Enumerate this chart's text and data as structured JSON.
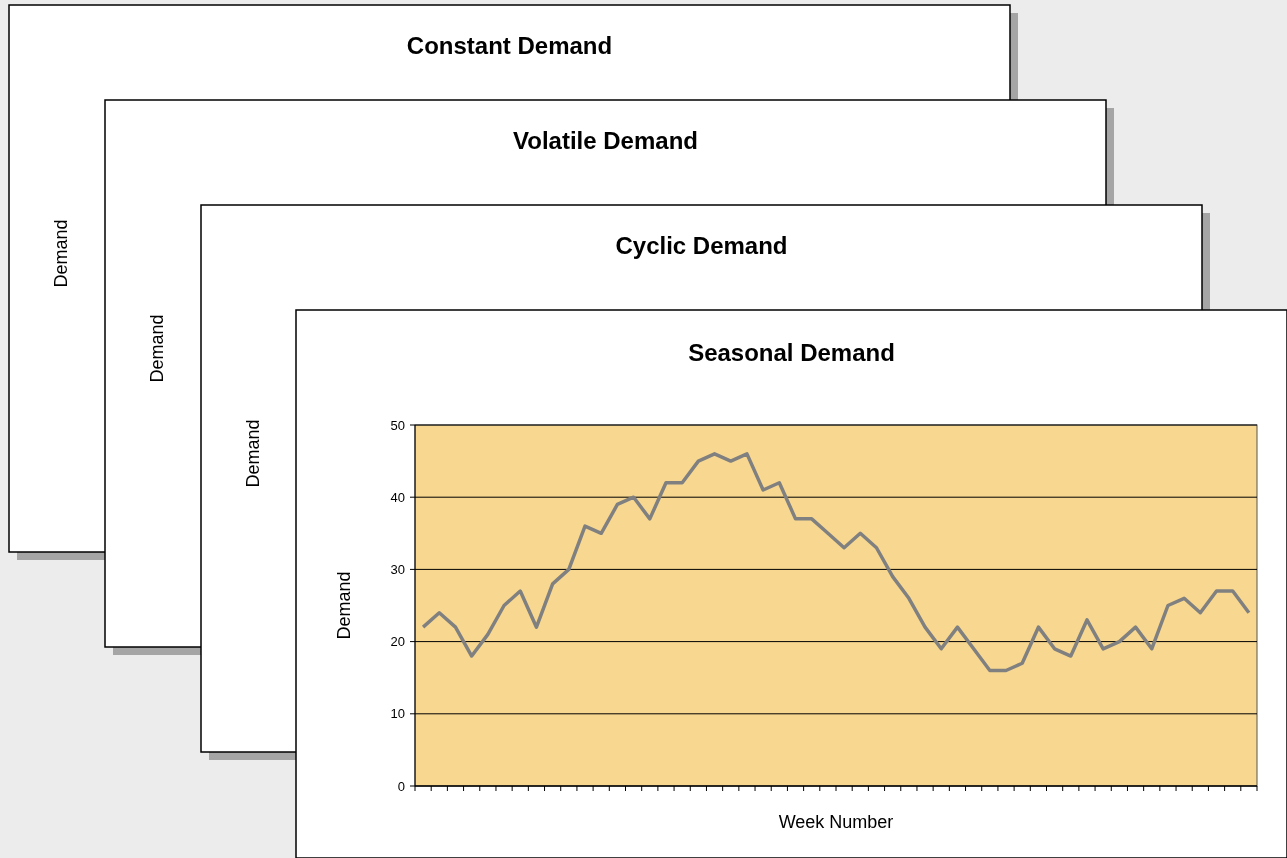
{
  "chart_data": [
    {
      "type": "other",
      "title": "Constant Demand",
      "ylabel": "Demand"
    },
    {
      "type": "other",
      "title": "Volatile Demand",
      "ylabel": "Demand"
    },
    {
      "type": "other",
      "title": "Cyclic Demand",
      "ylabel": "Demand"
    },
    {
      "type": "line",
      "title": "Seasonal Demand",
      "xlabel": "Week Number",
      "ylabel": "Demand",
      "categories": [
        null,
        null,
        null,
        null,
        null,
        null,
        null,
        null,
        null,
        null,
        null,
        null,
        null,
        null,
        null,
        null,
        null,
        null,
        null,
        null,
        null,
        null,
        null,
        null,
        null,
        null,
        null,
        null,
        null,
        null,
        null,
        null,
        null,
        null,
        null,
        null,
        null,
        null,
        null,
        null,
        null,
        null,
        null,
        null,
        null,
        null,
        null,
        null,
        null,
        null,
        null,
        null
      ],
      "series": [
        {
          "color": "#808080",
          "values": [
            22,
            24,
            22,
            18,
            21,
            25,
            27,
            22,
            28,
            30,
            36,
            35,
            39,
            40,
            37,
            42,
            42,
            45,
            46,
            45,
            46,
            41,
            42,
            37,
            37,
            35,
            33,
            35,
            33,
            29,
            26,
            22,
            19,
            22,
            19,
            16,
            16,
            17,
            22,
            19,
            18,
            23,
            19,
            20,
            22,
            19,
            25,
            26,
            24,
            27,
            27,
            24
          ]
        }
      ],
      "ylim": [
        0,
        50
      ],
      "yticks": [
        0,
        10,
        20,
        30,
        40,
        50
      ],
      "grid": "y",
      "marker": "none",
      "line_style": "solid"
    }
  ]
}
